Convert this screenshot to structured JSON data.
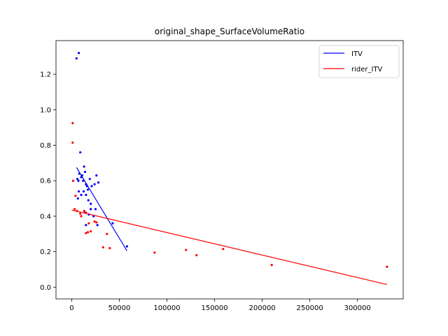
{
  "chart_data": {
    "type": "scatter",
    "title": "original_shape_SurfaceVolumeRatio",
    "xlabel": "",
    "ylabel": "",
    "xlim": [
      -16500,
      348000
    ],
    "ylim": [
      -0.066,
      1.39
    ],
    "x_ticks": [
      0,
      50000,
      100000,
      150000,
      200000,
      250000,
      300000
    ],
    "x_tick_labels": [
      "0",
      "50000",
      "100000",
      "150000",
      "200000",
      "250000",
      "300000"
    ],
    "y_ticks": [
      0.0,
      0.2,
      0.4,
      0.6,
      0.8,
      1.0,
      1.2
    ],
    "y_tick_labels": [
      "0.0",
      "0.2",
      "0.4",
      "0.6",
      "0.8",
      "1.0",
      "1.2"
    ],
    "grid": false,
    "legend_position": "top-right",
    "series": [
      {
        "name": "ITV",
        "color": "#0000ff",
        "points": [
          [
            5000,
            1.29
          ],
          [
            7500,
            1.32
          ],
          [
            9000,
            0.76
          ],
          [
            6000,
            0.61
          ],
          [
            7000,
            0.6
          ],
          [
            8000,
            0.64
          ],
          [
            10000,
            0.62
          ],
          [
            11000,
            0.63
          ],
          [
            12000,
            0.6
          ],
          [
            13000,
            0.68
          ],
          [
            14000,
            0.65
          ],
          [
            15000,
            0.58
          ],
          [
            16000,
            0.57
          ],
          [
            17000,
            0.55
          ],
          [
            19000,
            0.61
          ],
          [
            21000,
            0.57
          ],
          [
            24000,
            0.58
          ],
          [
            26000,
            0.63
          ],
          [
            28000,
            0.59
          ],
          [
            7500,
            0.54
          ],
          [
            10000,
            0.52
          ],
          [
            12500,
            0.54
          ],
          [
            15000,
            0.52
          ],
          [
            17500,
            0.49
          ],
          [
            20000,
            0.47
          ],
          [
            6500,
            0.5
          ],
          [
            20000,
            0.44
          ],
          [
            25000,
            0.44
          ],
          [
            14000,
            0.42
          ],
          [
            18000,
            0.41
          ],
          [
            23000,
            0.4
          ],
          [
            15000,
            0.35
          ],
          [
            27000,
            0.35
          ],
          [
            43000,
            0.36
          ],
          [
            58000,
            0.23
          ]
        ],
        "fit_line": [
          [
            5000,
            0.675
          ],
          [
            58000,
            0.205
          ]
        ]
      },
      {
        "name": "rider_ITV",
        "color": "#ff0000",
        "points": [
          [
            1000,
            0.925
          ],
          [
            1000,
            0.815
          ],
          [
            1500,
            0.6
          ],
          [
            4000,
            0.515
          ],
          [
            3000,
            0.44
          ],
          [
            5500,
            0.43
          ],
          [
            9000,
            0.415
          ],
          [
            10000,
            0.4
          ],
          [
            13000,
            0.43
          ],
          [
            15000,
            0.42
          ],
          [
            18000,
            0.36
          ],
          [
            24000,
            0.37
          ],
          [
            26000,
            0.365
          ],
          [
            15000,
            0.305
          ],
          [
            17000,
            0.31
          ],
          [
            20000,
            0.315
          ],
          [
            37000,
            0.3
          ],
          [
            33000,
            0.225
          ],
          [
            40000,
            0.22
          ],
          [
            87000,
            0.195
          ],
          [
            120000,
            0.21
          ],
          [
            131000,
            0.18
          ],
          [
            159000,
            0.215
          ],
          [
            210000,
            0.125
          ],
          [
            331000,
            0.115
          ]
        ],
        "fit_line": [
          [
            0,
            0.435
          ],
          [
            331000,
            0.015
          ]
        ]
      }
    ]
  }
}
